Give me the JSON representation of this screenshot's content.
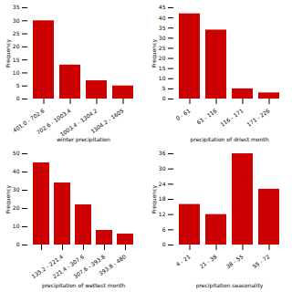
{
  "chart_data": [
    {
      "type": "bar",
      "categories": [
        "401.0 - 702.6",
        "702.6 - 1003.4",
        "1003.4 - 1304.2",
        "1304.2 - 1605"
      ],
      "values": [
        30,
        13,
        7,
        5
      ],
      "xlabel": "winter precipitation",
      "ylabel": "Frequency",
      "ylim": [
        0,
        35
      ],
      "yticks": [
        0,
        5,
        10,
        15,
        20,
        25,
        30,
        35
      ],
      "color": "#cc0000"
    },
    {
      "type": "bar",
      "categories": [
        "0 - 61",
        "61 - 116",
        "116 - 171",
        "171 - 226"
      ],
      "values": [
        42,
        34,
        5,
        3
      ],
      "xlabel": "precipitation of driest month",
      "ylabel": "Frequency",
      "ylim": [
        0,
        45
      ],
      "yticks": [
        0,
        5,
        10,
        15,
        20,
        25,
        30,
        35,
        40,
        45
      ],
      "color": "#cc0000"
    },
    {
      "type": "bar",
      "categories": [
        null,
        "135.2 - 221.4",
        "221.4 - 307.6",
        "307.6 - 393.8",
        "393.8 - 480"
      ],
      "values": [
        45,
        34,
        22,
        8,
        6
      ],
      "xlabel": "precipitation of wettest month",
      "ylabel": "Frequency",
      "ylim": [
        0,
        50
      ],
      "yticks": [
        0,
        10,
        20,
        30,
        40,
        50
      ],
      "color": "#cc0000"
    },
    {
      "type": "bar",
      "categories": [
        "4 - 21",
        "21 - 38",
        "38 - 55",
        "55 - 72"
      ],
      "values": [
        16,
        12,
        36,
        22
      ],
      "xlabel": "precipitation seasonality",
      "ylabel": "Frequency",
      "ylim": [
        0,
        36
      ],
      "yticks": [
        0,
        6,
        12,
        18,
        24,
        30,
        36
      ],
      "color": "#cc0000"
    }
  ]
}
